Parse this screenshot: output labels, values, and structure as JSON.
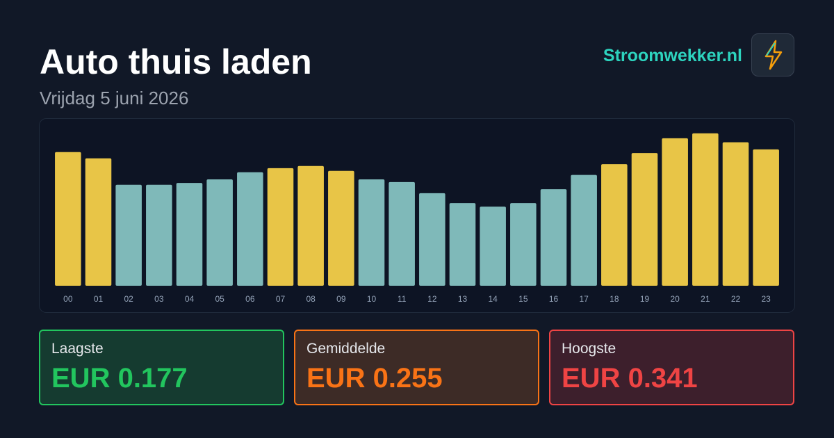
{
  "header": {
    "title": "Auto thuis laden",
    "subtitle": "Vrijdag 5 juni 2026",
    "brand": "Stroomwekker.nl"
  },
  "chart_data": {
    "type": "bar",
    "categories": [
      "00",
      "01",
      "02",
      "03",
      "04",
      "05",
      "06",
      "07",
      "08",
      "09",
      "10",
      "11",
      "12",
      "13",
      "14",
      "15",
      "16",
      "17",
      "18",
      "19",
      "20",
      "21",
      "22",
      "23"
    ],
    "values": [
      0.299,
      0.285,
      0.226,
      0.226,
      0.23,
      0.238,
      0.254,
      0.263,
      0.268,
      0.257,
      0.238,
      0.232,
      0.207,
      0.185,
      0.177,
      0.185,
      0.216,
      0.248,
      0.272,
      0.297,
      0.33,
      0.341,
      0.321,
      0.305
    ],
    "colors": [
      "#e8c547",
      "#e8c547",
      "#7fb9b9",
      "#7fb9b9",
      "#7fb9b9",
      "#7fb9b9",
      "#7fb9b9",
      "#e8c547",
      "#e8c547",
      "#e8c547",
      "#7fb9b9",
      "#7fb9b9",
      "#7fb9b9",
      "#7fb9b9",
      "#7fb9b9",
      "#7fb9b9",
      "#7fb9b9",
      "#7fb9b9",
      "#e8c547",
      "#e8c547",
      "#e8c547",
      "#e8c547",
      "#e8c547",
      "#e8c547"
    ],
    "ylim": [
      0,
      0.35
    ]
  },
  "stats": [
    {
      "label": "Laagste",
      "value": "EUR 0.177"
    },
    {
      "label": "Gemiddelde",
      "value": "EUR 0.255"
    },
    {
      "label": "Hoogste",
      "value": "EUR 0.341"
    }
  ]
}
